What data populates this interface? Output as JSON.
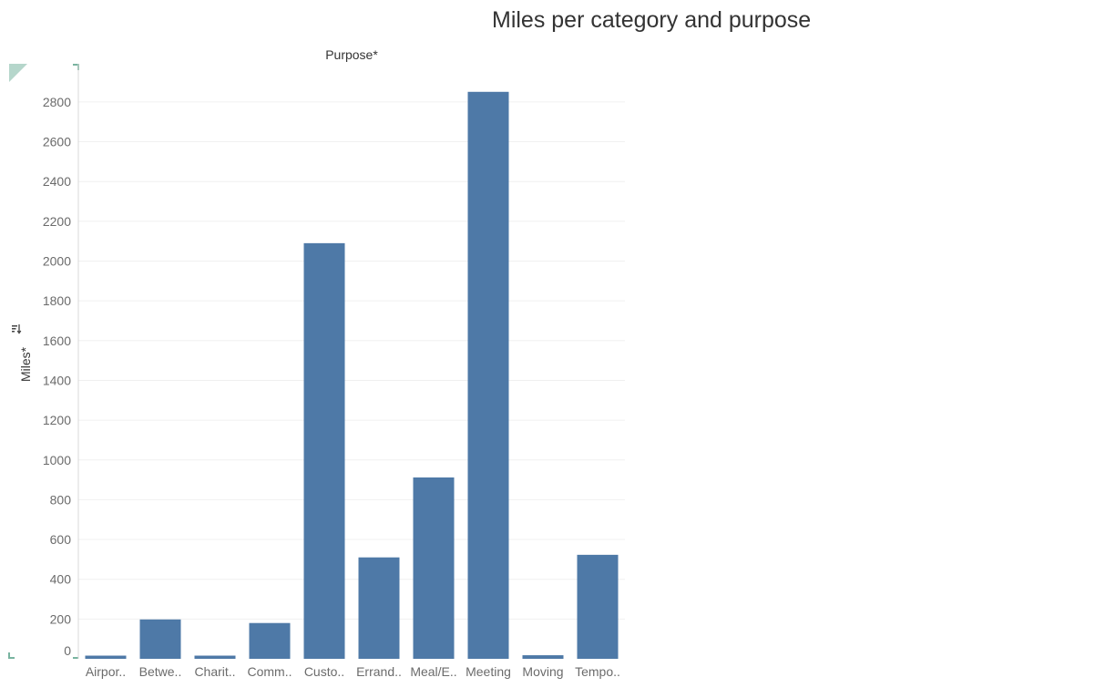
{
  "title": "Miles per category and purpose",
  "column_header": "Purpose*",
  "y_axis_title": "Miles*",
  "icons": {
    "sort": "sort-icon",
    "corner_marker": "corner-marker-icon"
  },
  "colors": {
    "bar": "#4e79a7",
    "accent": "#79b4a0"
  },
  "chart_data": {
    "type": "bar",
    "title": "Miles per category and purpose",
    "xlabel": "Purpose*",
    "ylabel": "Miles*",
    "categories": [
      "Airpor..",
      "Betwe..",
      "Charit..",
      "Comm..",
      "Custo..",
      "Errand..",
      "Meal/E..",
      "Meeting",
      "Moving",
      "Tempo.."
    ],
    "values": [
      16,
      198,
      16,
      180,
      2090,
      510,
      912,
      2851,
      18,
      523
    ],
    "ylim": [
      0,
      2850
    ],
    "yticks": [
      0,
      200,
      400,
      600,
      800,
      1000,
      1200,
      1400,
      1600,
      1800,
      2000,
      2200,
      2400,
      2600,
      2800
    ],
    "grid": true,
    "legend": "none"
  }
}
